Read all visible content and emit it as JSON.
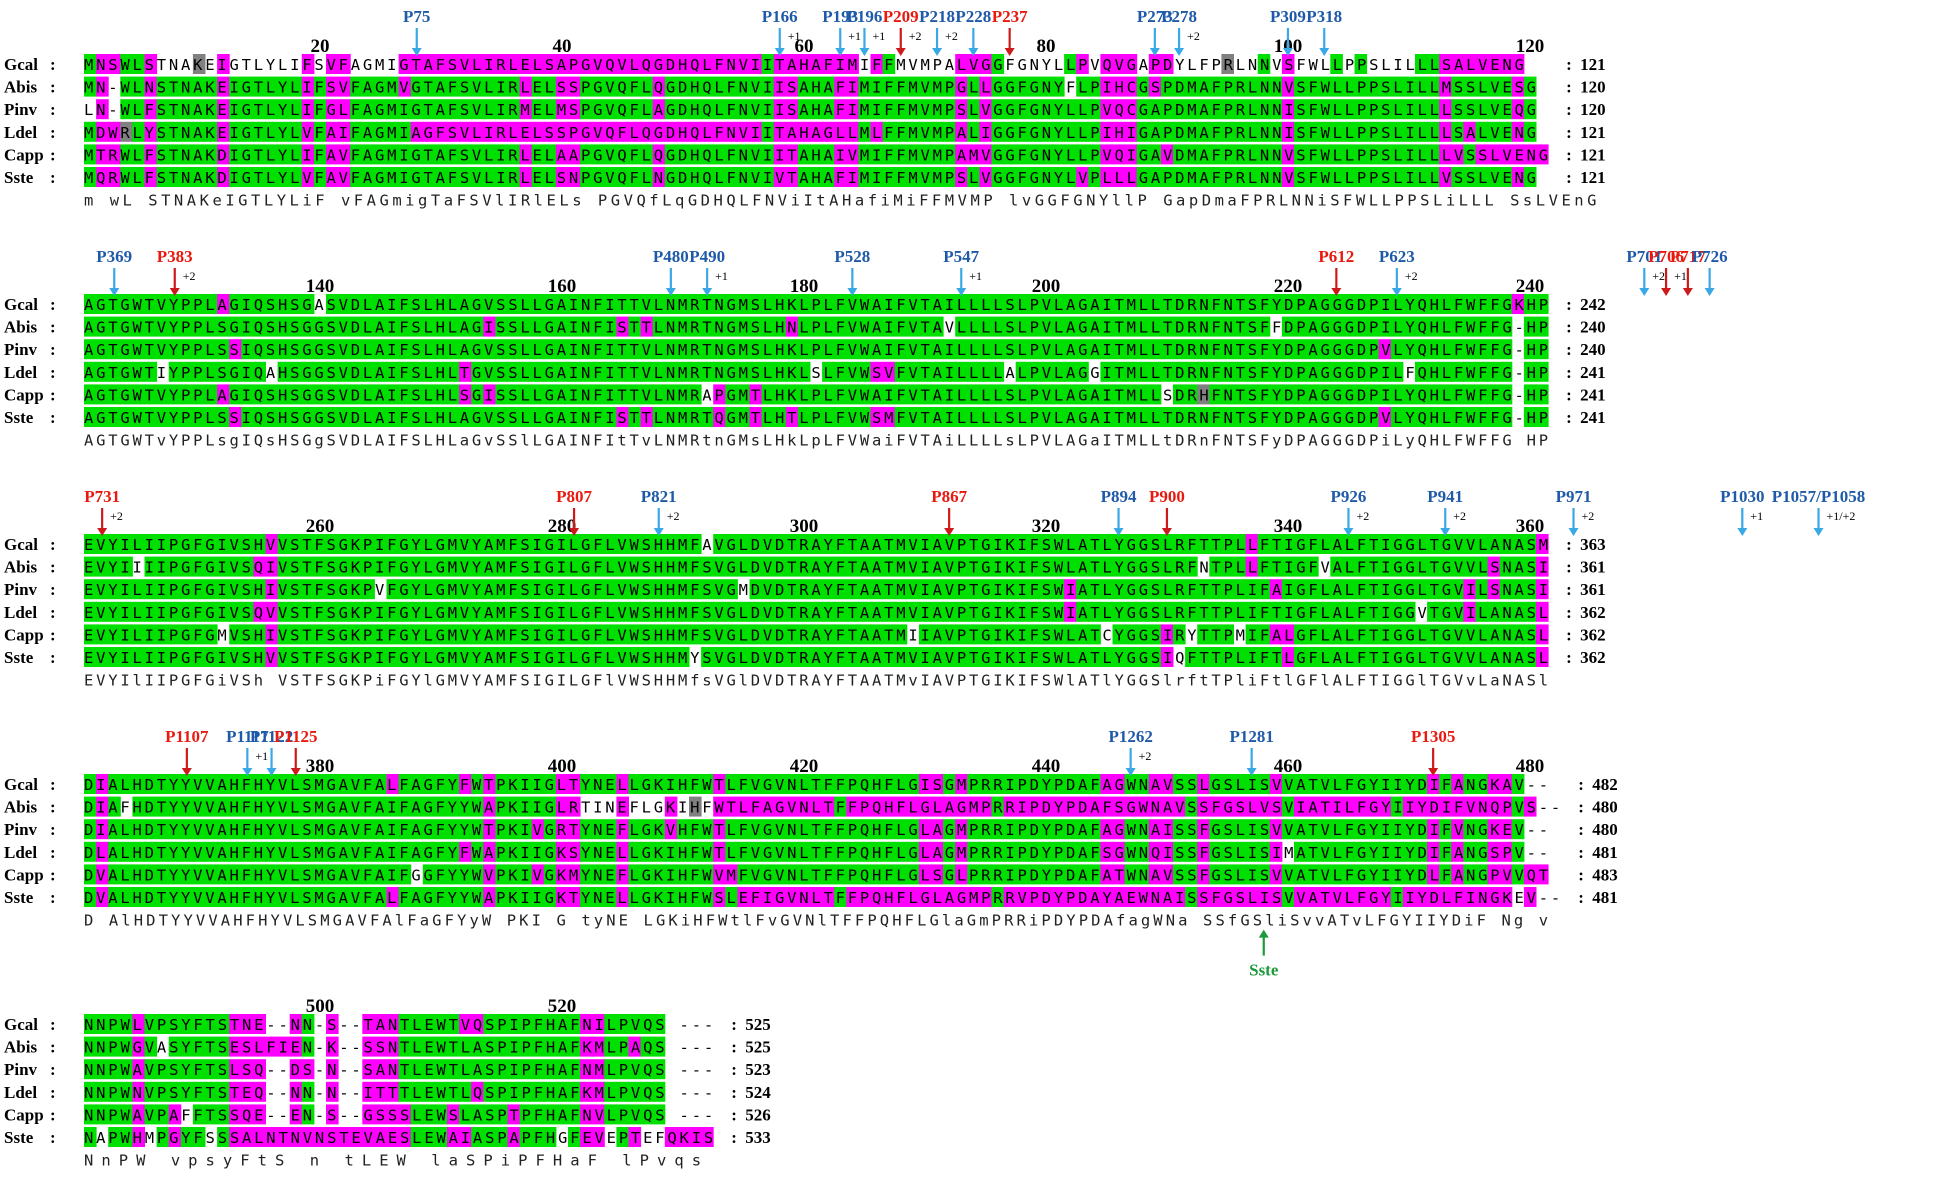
{
  "colors": {
    "identical": "#00e000",
    "similar": "#ff00ff",
    "weak": "#808080",
    "marker_red": "#e8190f",
    "marker_blue": "#1f5aa8",
    "arrow_blue": "#39a9e6",
    "arrow_red": "#cc1a1a",
    "sste_label": "#1a9a3a"
  },
  "blocks": [
    {
      "ruler": [
        {
          "num": "20",
          "col": 19
        },
        {
          "num": "40",
          "col": 39
        },
        {
          "num": "60",
          "col": 59
        },
        {
          "num": "80",
          "col": 79
        },
        {
          "num": "100",
          "col": 99
        },
        {
          "num": "120",
          "col": 119
        }
      ],
      "rows": [
        {
          "name": "Gcal",
          "seq": "MNSWLSTNAKEIGTLYLIFSVFAGMIGTAFSVLIRLELSAPGVQVLQGDHQLFNVIITAHAFIMIFFMVMPALVGGFGNYLLPVQVGAPDYLFPRLNNVSFWLLPPSLILLLSALVENG",
          "count": "121"
        },
        {
          "name": "Abis",
          "seq": "MN-WLNSTNAKEIGTLYLIFSVFAGMVGTAFSVLIRLELSSPGVQFLQGDHQLFNVIISAHAFIMIFFMVMPGLLGGFGNYFLPIHCGSPDMAFPRLNNVSFWLLPPSLILLMSSLVESG",
          "count": "120"
        },
        {
          "name": "Pinv",
          "seq": "LN-WLFSTNAKEIGTLYLIFGLFAGMIGTAFSVLIRMELMSPGVQFLAGDHQLFNVIISAHAFIMIFFMVMPSLVGGFGNYLLPVQCGAPDMAFPRLNNISFWLLPPSLILLLSSLVEQG",
          "count": "120"
        },
        {
          "name": "Ldel",
          "seq": "MDWRLYSTNAKEIGTLYLVFAIFAGMIAGFSVLIRLELSSPGVQFLQGDHQLFNVIITAHAGLLMLFFMVMPALIGGFGNYLLPIHIGAPDMAFPRLNNISFWLLPPSLILLLSALVENG",
          "count": "121"
        },
        {
          "name": "Capp",
          "seq": "MTRWLFSTNAKDIGTLYLIFAVFAGMIGTAFSVLIRLELAAPGVQFLQGDHQLFNVIITAHAIVMIFFMVMPAMVGGFGNYLLPVQIGAVDMAFPRLNNVSFWLLPPSLILLLVSSLVENG",
          "count": "121"
        },
        {
          "name": "Sste",
          "seq": "MQRWLFSTNAKDIGTLYLVFAVFAGMIGTAFSVLIRLELSNPGVQFLNGDHQLFNVIVTAHAFIMIFFMVMPSLVGGFGNYLVPLLLGAPDMAFPRLNNVSFWLLPPSLILLVSSLVENG",
          "count": "121"
        }
      ],
      "consensus": "m  wL STNAKeIGTLYLiF vFAGmigTaFSVlIRlELs PGVQfLqGDHQLFNViItAHafiMiFFMVMP lvGGFGNYllP       GapDmaFPRLNNiSFWLLPPSLiLLL SsLVEnG",
      "markers": [
        {
          "label": "P75",
          "col": 27,
          "color": "blue"
        },
        {
          "label": "P166",
          "col": 57,
          "color": "blue",
          "sup": "+1"
        },
        {
          "label": "P193",
          "col": 62,
          "color": "blue",
          "sup": "+1"
        },
        {
          "label": "P196",
          "col": 64,
          "color": "blue",
          "sup": "+1"
        },
        {
          "label": "P209",
          "col": 67,
          "color": "red",
          "sup": "+2"
        },
        {
          "label": "P218",
          "col": 70,
          "color": "blue",
          "sup": "+2"
        },
        {
          "label": "P228",
          "col": 73,
          "color": "blue"
        },
        {
          "label": "P237",
          "col": 76,
          "color": "red"
        },
        {
          "label": "P273",
          "col": 88,
          "color": "blue"
        },
        {
          "label": "P278",
          "col": 90,
          "color": "blue",
          "sup": "+2"
        },
        {
          "label": "P309",
          "col": 99,
          "color": "blue"
        },
        {
          "label": "P318",
          "col": 102,
          "color": "blue"
        }
      ]
    },
    {
      "ruler": [
        {
          "num": "140",
          "col": 19
        },
        {
          "num": "160",
          "col": 39
        },
        {
          "num": "180",
          "col": 59
        },
        {
          "num": "200",
          "col": 79
        },
        {
          "num": "220",
          "col": 99
        },
        {
          "num": "240",
          "col": 119
        }
      ],
      "rows": [
        {
          "name": "Gcal",
          "seq": "AGTGWTVYPPLAGIQSHSGASVDLAIFSLHLAGVSSLLGAINFITTVLNMRTNGMSLHKLPLFVWAIFVTAILLLLSLPVLAGAITMLLTDRNFNTSFYDPAGGGDPILYQHLFWFFGKHP",
          "count": "242"
        },
        {
          "name": "Abis",
          "seq": "AGTGWTVYPPLSGIQSHSGGSVDLAIFSLHLAGISSLLGAINFISTTLNMRTNGMSLHNLPLFVWAIFVTAVLLLLSLPVLAGAITMLLTDRNFNTSFFDPAGGGDPILYQHLFWFFG-HP",
          "count": "240"
        },
        {
          "name": "Pinv",
          "seq": "AGTGWTVYPPLSSIQSHSGGSVDLAIFSLHLAGVSSLLGAINFITTVLNMRTNGMSLHKLPLFVWAIFVTAILLLLSLPVLAGAITMLLTDRNFNTSFYDPAGGGDPVLYQHLFWFFG-HP",
          "count": "240"
        },
        {
          "name": "Ldel",
          "seq": "AGTGWTIYPPLSGIQAHSGGSVDLAIFSLHLTGVSSLLGAINFITTVLNMRTNGMSLHKLSLFVWSVFVTAILLLLALPVLAGGITMLLTDRNFNTSFYDPAGGGDPILFQHLFWFFG-HP",
          "count": "241"
        },
        {
          "name": "Capp",
          "seq": "AGTGWTVYPPLAGIQSHSGGSVDLAIFSLHLSGISSLLGAINFITTVLNMRAPGMTLHKLPLFVWAIFVTAILLLLSLPVLAGAITMLLSDRHFNTSFYDPAGGGDPILYQHLFWFFG-HP",
          "count": "241"
        },
        {
          "name": "Sste",
          "seq": "AGTGWTVYPPLSSIQSHSGGSVDLAIFSLHLAGVSSLLGAINFISTTLNMRTQGMTLHTLPLFVWSMFVTAILLLLSLPVLAGAITMLLTDRNFNTSFYDPAGGGDPVLYQHLFWFFG-HP",
          "count": "241"
        }
      ],
      "consensus": "AGTGWTvYPPLsgIQsHSGgSVDLAIFSLHLaGvSSlLGAINFItTvLNMRtnGMsLHkLpLFVWaiFVTAiLLLLsLPVLAGaITMLLtDRnFNTSFyDPAGGGDPiLyQHLFWFFG HP",
      "markers": [
        {
          "label": "P369",
          "col": 2,
          "color": "blue"
        },
        {
          "label": "P383",
          "col": 7,
          "color": "red",
          "sup": "+2"
        },
        {
          "label": "P480",
          "col": 48,
          "color": "blue"
        },
        {
          "label": "P490",
          "col": 51,
          "color": "blue",
          "sup": "+1"
        },
        {
          "label": "P528",
          "col": 63,
          "color": "blue"
        },
        {
          "label": "P547",
          "col": 72,
          "color": "blue",
          "sup": "+1"
        },
        {
          "label": "P612",
          "col": 103,
          "color": "red"
        },
        {
          "label": "P623",
          "col": 108,
          "color": "blue",
          "sup": "+2"
        },
        {
          "label": "P701",
          "col": 140,
          "color": "blue",
          "sup": "+2"
        },
        {
          "label": "P706",
          "col": 144,
          "color": "red",
          "sup": "+1"
        },
        {
          "label": "P717",
          "col": 148,
          "color": "red"
        },
        {
          "label": "P726",
          "col": 152,
          "color": "blue"
        }
      ]
    },
    {
      "ruler": [
        {
          "num": "260",
          "col": 19
        },
        {
          "num": "280",
          "col": 39
        },
        {
          "num": "300",
          "col": 59
        },
        {
          "num": "320",
          "col": 79
        },
        {
          "num": "340",
          "col": 99
        },
        {
          "num": "360",
          "col": 119
        }
      ],
      "rows": [
        {
          "name": "Gcal",
          "seq": "EVYILIIPGFGIVSHVVSTFSGKPIFGYLGMVYAMFSIGILGFLVWSHHMFAVGLDVDTRAYFTAATMVIAVPTGIKIFSWLATLYGGSLRFTTPLLFTIGFLALFTIGGLTGVVLANASM",
          "count": "363"
        },
        {
          "name": "Abis",
          "seq": "EVYIIIIPGFGIVSQIVSTFSGKPIFGYLGMVYAMFSIGILGFLVWSHHMFSVGLDVDTRAYFTAATMVIAVPTGIKIFSWLATLYGGSLRFNTPLLFTIGFVALFTIGGLTGVVLSNASI",
          "count": "361"
        },
        {
          "name": "Pinv",
          "seq": "EVYILIIPGFGIVSHIVSTFSGKPVFGYLGMVYAMFSIGILGFLVWSHHMFSVGMDVDTRAYFTAATMVIAVPTGIKIFSWIATLYGGSLRFTTPLIFAIGFLALFTIGGLTGVILSNASI",
          "count": "361"
        },
        {
          "name": "Ldel",
          "seq": "EVYILIIPGFGIVSQVVSTFSGKPIFGYLGMVYAMFSIGILGFLVWSHHMFSVGLDVDTRAYFTAATMVIAVPTGIKIFSWIATLYGGSLRFTTPLIFTIGFLALFTIGGVTGVILANASL",
          "count": "362"
        },
        {
          "name": "Capp",
          "seq": "EVYILIIPGFGMVSHIVSTFSGKPIFGYLGMVYAMFSIGILGFLVWSHHMFSVGLDVDTRAYFTAATMIIAVPTGIKIFSWLATCYGGSIRYTTPMIFALGFLALFTIGGLTGVVLANASL",
          "count": "362"
        },
        {
          "name": "Sste",
          "seq": "EVYILIIPGFGIVSHVVSTFSGKPIFGYLGMVYAMFSIGILGFLVWSHHMYSVGLDVDTRAYFTAATMVIAVPTGIKIFSWLATLYGGSIQFTTPLIFTLGFLALFTIGGLTGVVLANASL",
          "count": "362"
        }
      ],
      "consensus": "EVYIlIIPGFGiVSh VSTFSGKPiFGYlGMVYAMFSIGILGFlVWSHHMfsVGlDVDTRAYFTAATMvIAVPTGIKIFSWlATlYGGSlrftTPliFtlGFlALFTIGGlTGVvLaNASl",
      "markers": [
        {
          "label": "P731",
          "col": 1,
          "color": "red",
          "sup": "+2"
        },
        {
          "label": "P807",
          "col": 40,
          "color": "red"
        },
        {
          "label": "P821",
          "col": 47,
          "color": "blue",
          "sup": "+2"
        },
        {
          "label": "P867",
          "col": 71,
          "color": "red"
        },
        {
          "label": "P894",
          "col": 85,
          "color": "blue"
        },
        {
          "label": "P900",
          "col": 89,
          "color": "red"
        },
        {
          "label": "P926",
          "col": 104,
          "color": "blue",
          "sup": "+2"
        },
        {
          "label": "P941",
          "col": 112,
          "color": "blue",
          "sup": "+2"
        },
        {
          "label": "P971",
          "col": 127,
          "color": "blue",
          "sup": "+2"
        },
        {
          "label": "P1030",
          "col": 158,
          "color": "blue",
          "sup": "+1"
        },
        {
          "label": "P1057/P1058",
          "col": 172,
          "color": "blue",
          "sup": "+1/+2"
        }
      ]
    },
    {
      "ruler": [
        {
          "num": "380",
          "col": 19
        },
        {
          "num": "400",
          "col": 39
        },
        {
          "num": "420",
          "col": 59
        },
        {
          "num": "440",
          "col": 79
        },
        {
          "num": "460",
          "col": 99
        },
        {
          "num": "480",
          "col": 119
        }
      ],
      "rows": [
        {
          "name": "Gcal",
          "seq": "DIALHDTYYVVAHFHYVLSMGAVFALFAGFYFWTPKIIGLTYNELLGKIHFWTLFVGVNLTFFPQHFLGISGMPRRIPDYPDAFAGWNAVSSLGSLISVVATVLFGYIIYDIFANGKAV--",
          "count": "482"
        },
        {
          "name": "Abis",
          "seq": "DIAFHDTYYVVAHFHYVLSMGAVFAIFAGFYYWAPKIIGLRTINEFLGKIHFWTLFAGVNLTFFPQHFLGLAGMPRRIPDYPDAFSGWNAVSSFGSLVSVIATILFGYIIYDIFVNQPVS--",
          "count": "480"
        },
        {
          "name": "Pinv",
          "seq": "DIALHDTYYVVAHFHYVLSMGAVFAIFAGFYYWTPKIVGRTYNEFLGKVHFWTLFVGVNLTFFPQHFLGLAGMPRRIPDYPDAFAGWNAISSFGSLISVVATVLFGYIIYDIFVNGKEV--",
          "count": "480"
        },
        {
          "name": "Ldel",
          "seq": "DLALHDTYYVVAHFHYVLSMGAVFAIFAGFYFWAPKIIGKSYNELLGKIHFWTLFVGVNLTFFPQHFLGLAGMPRRIPDYPDAFSGWNQISSFGSLISIMATVLFGYIIYDIFANGSPV--",
          "count": "481"
        },
        {
          "name": "Capp",
          "seq": "DVALHDTYYVVAHFHYVLSMGAVFAIFGGFYYWVPKIVGKMYNEFLGKIHFWVMFVGVNLTFFPQHFLGLSGLPRRIPDYPDAFATWNAVSSFGSLISVVATVLFGYIIYDLFANGPVVQT",
          "count": "483"
        },
        {
          "name": "Sste",
          "seq": "DVALHDTYYVVAHFHYVLSMGAVFALFAGFYYWAPKIIGKTYNELLGKIHFWSLEFIGVNLTFFPQHFLGLAGMPRRVPDYPDAYAEWNAISSFGSLISVVATVLFGYIIYDLFINGKEV--",
          "count": "481"
        }
      ],
      "consensus": "D AlHDTYYVVAHFHYVLSMGAVFAlFaGFYyW PKI G tyNE LGKiHFWtlFvGVNlTFFPQHFLGlaGmPRRiPDYPDAfagWNa SSfGSliSvvATvLFGYIIYDiF Ng  v  ",
      "markers": [
        {
          "label": "P1107",
          "col": 8,
          "color": "red"
        },
        {
          "label": "P1117",
          "col": 13,
          "color": "blue",
          "sup": "+1"
        },
        {
          "label": "P1122",
          "col": 15,
          "color": "blue"
        },
        {
          "label": "P1125",
          "col": 17,
          "color": "red"
        },
        {
          "label": "P1262",
          "col": 86,
          "color": "blue",
          "sup": "+2"
        },
        {
          "label": "P1281",
          "col": 96,
          "color": "blue"
        },
        {
          "label": "P1305",
          "col": 111,
          "color": "red"
        }
      ],
      "bottom_marker": {
        "label": "Sste",
        "col": 97
      }
    },
    {
      "ruler": [
        {
          "num": "500",
          "col": 19
        },
        {
          "num": "520",
          "col": 39
        }
      ],
      "rows": [
        {
          "name": "Gcal",
          "seq": "NNPWLVPSYFTSTNE--NN-S--TANTLEWTVQSPIPFHAFNILPVQS ---",
          "count": "525"
        },
        {
          "name": "Abis",
          "seq": "NNPWGVASYFTSESLFIEN-K--SSNTLEWTLASPIPFHAFKMLPAQS ---",
          "count": "525"
        },
        {
          "name": "Pinv",
          "seq": "NNPWAVPSYFTSLSQ--DS-N--SANTLEWTLASPIPFHAFNMLPVQS ---",
          "count": "523"
        },
        {
          "name": "Ldel",
          "seq": "NNPWNVPSYFTSTEQ--NN-N--ITTTLEWTLQSPIPFHAFKMLPVQS ---",
          "count": "524"
        },
        {
          "name": "Capp",
          "seq": "NNPWAVPAFFTSSQE--EN-S--GSSSLEWSLASPTPFHAFNVLPVQS ---",
          "count": "526"
        },
        {
          "name": "Sste",
          "seq": "NAPWHMPGYFSSSALNTNVNSTEVAESLEWAIASPAPFHGFEVEPTEFQKIS",
          "count": "533"
        }
      ],
      "consensus": "NnPW vpsyFtS     n       tLEW laSPiPFHaF  lPvqs    "
    }
  ]
}
